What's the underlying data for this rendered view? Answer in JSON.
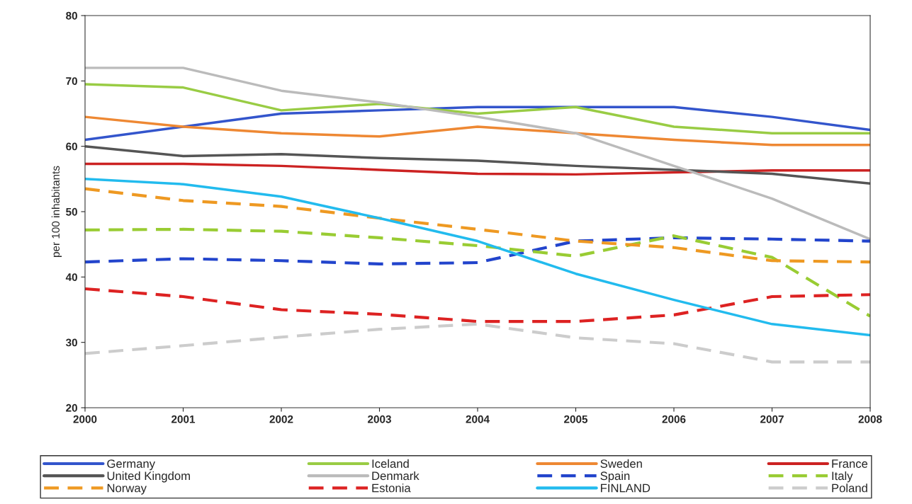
{
  "chart_data": {
    "type": "line",
    "ylabel": "per 100 inhabitants",
    "x": [
      2000,
      2001,
      2002,
      2003,
      2004,
      2005,
      2006,
      2007,
      2008
    ],
    "xlim": [
      2000,
      2008
    ],
    "xticks": [
      2000,
      2001,
      2002,
      2003,
      2004,
      2005,
      2006,
      2007,
      2008
    ],
    "ylim": [
      20,
      80
    ],
    "yticks": [
      20,
      30,
      40,
      50,
      60,
      70,
      80
    ],
    "grid": false,
    "legend": "bottom",
    "marker": "none",
    "series": [
      {
        "name": "Germany",
        "color": "#3355cc",
        "line_style": "solid",
        "values": [
          61,
          63,
          65,
          65.5,
          66,
          66,
          66,
          64.5,
          62.5
        ]
      },
      {
        "name": "Iceland",
        "color": "#99cc44",
        "line_style": "solid",
        "values": [
          69.5,
          69,
          65.5,
          66.5,
          65,
          66,
          63,
          62,
          62
        ]
      },
      {
        "name": "Sweden",
        "color": "#ee8833",
        "line_style": "solid",
        "values": [
          64.5,
          63,
          62,
          61.5,
          63,
          62,
          61,
          60.2,
          60.2
        ]
      },
      {
        "name": "France",
        "color": "#cc2222",
        "line_style": "solid",
        "values": [
          57.3,
          57.3,
          57,
          56.4,
          55.8,
          55.7,
          56,
          56.3,
          56.3
        ]
      },
      {
        "name": "United Kingdom",
        "color": "#555555",
        "line_style": "solid",
        "values": [
          60,
          58.5,
          58.8,
          58.2,
          57.8,
          57,
          56.4,
          55.8,
          54.3
        ]
      },
      {
        "name": "Denmark",
        "color": "#bbbbbb",
        "line_style": "solid",
        "values": [
          72,
          72,
          68.5,
          66.7,
          64.5,
          62,
          57,
          52,
          45.8
        ]
      },
      {
        "name": "Spain",
        "color": "#2244cc",
        "line_style": "dashed",
        "values": [
          42.3,
          42.8,
          42.5,
          42,
          42.2,
          45.5,
          46,
          45.8,
          45.5
        ]
      },
      {
        "name": "Italy",
        "color": "#99cc33",
        "line_style": "dashed",
        "values": [
          47.2,
          47.3,
          47,
          46,
          44.8,
          43.2,
          46.3,
          43,
          34
        ]
      },
      {
        "name": "Norway",
        "color": "#ee9922",
        "line_style": "dashed",
        "values": [
          53.5,
          51.7,
          50.8,
          49,
          47.3,
          45.5,
          44.5,
          42.5,
          42.3
        ]
      },
      {
        "name": "Estonia",
        "color": "#dd2222",
        "line_style": "dashed",
        "values": [
          38.2,
          37,
          35,
          34.3,
          33.2,
          33.2,
          34.2,
          37,
          37.3
        ]
      },
      {
        "name": "FINLAND",
        "color": "#22bbee",
        "line_style": "solid",
        "values": [
          55,
          54.2,
          52.3,
          49,
          45.5,
          40.5,
          36.5,
          32.8,
          31.1
        ]
      },
      {
        "name": "Poland",
        "color": "#cccccc",
        "line_style": "dashed",
        "values": [
          28.3,
          29.5,
          30.8,
          32,
          32.8,
          30.7,
          29.8,
          27,
          27
        ]
      }
    ]
  }
}
